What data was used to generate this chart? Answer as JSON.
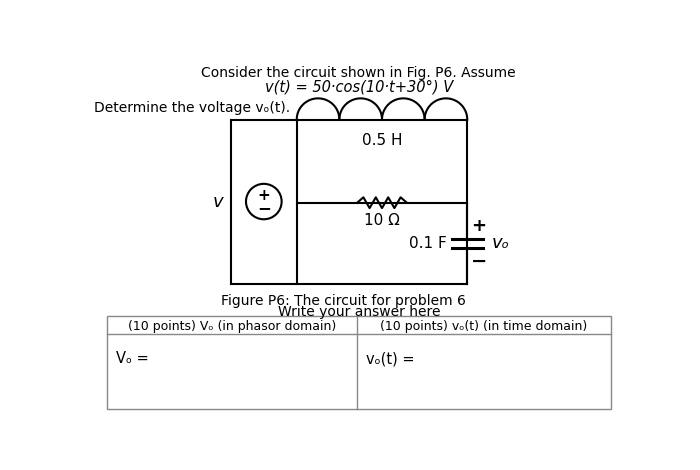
{
  "title_line1": "Consider the circuit shown in Fig. P6. Assume",
  "title_line2": "v(t) = 50·cos(10·t+30°) V",
  "subtitle": "Determine the voltage vₒ(t).",
  "figure_caption": "Figure P6: The circuit for problem 6",
  "answer_header": "Write your answer here",
  "col1_header": "(10 points) Vₒ (in phasor domain)",
  "col2_header": "(10 points) vₒ(t) (in time domain)",
  "col1_answer": "Vₒ =",
  "col2_answer": "vₒ(t) =",
  "inductor_label": "0.5 H",
  "resistor_label": "10 Ω",
  "capacitor_label": "0.1 F",
  "source_label": "v",
  "bg_color": "#ffffff",
  "text_color": "#000000",
  "lw": 1.5
}
